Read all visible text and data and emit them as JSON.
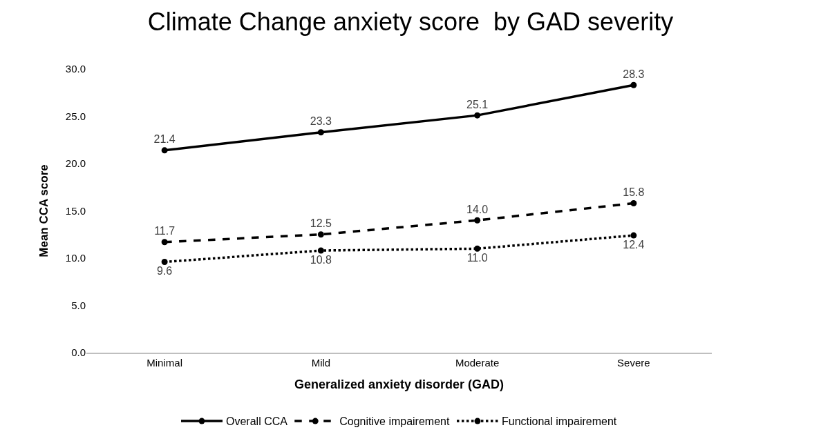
{
  "chart_data": {
    "type": "line",
    "title": "Climate Change anxiety score  by GAD severity",
    "xlabel": "Generalized anxiety disorder (GAD)",
    "ylabel": "Mean CCA score",
    "categories": [
      "Minimal",
      "Mild",
      "Moderate",
      "Severe"
    ],
    "series": [
      {
        "name": "Overall CCA",
        "color": "#000000",
        "values": [
          21.4,
          23.3,
          25.1,
          28.3
        ],
        "value_labels": [
          "21.4",
          "23.3",
          "25.1",
          "28.3"
        ],
        "line_style": "solid"
      },
      {
        "name": "Cognitive impairement",
        "color": "#000000",
        "values": [
          11.7,
          12.5,
          14.0,
          15.8
        ],
        "value_labels": [
          "11.7",
          "12.5",
          "14.0",
          "15.8"
        ],
        "line_style": "dashed"
      },
      {
        "name": "Functional impairement",
        "color": "#000000",
        "values": [
          9.6,
          10.8,
          11.0,
          12.4
        ],
        "value_labels": [
          "9.6",
          "10.8",
          "11.0",
          "12.4"
        ],
        "line_style": "dotted"
      }
    ],
    "ylim": [
      0,
      30
    ],
    "yticks": [
      {
        "value": 0,
        "label": "0.0"
      },
      {
        "value": 5,
        "label": "5.0"
      },
      {
        "value": 10,
        "label": "10.0"
      },
      {
        "value": 15,
        "label": "15.0"
      },
      {
        "value": 20,
        "label": "20.0"
      },
      {
        "value": 25,
        "label": "25.0"
      },
      {
        "value": 30,
        "label": "30.0"
      }
    ],
    "marker": "circle",
    "legend": "bottom",
    "grid": false
  }
}
